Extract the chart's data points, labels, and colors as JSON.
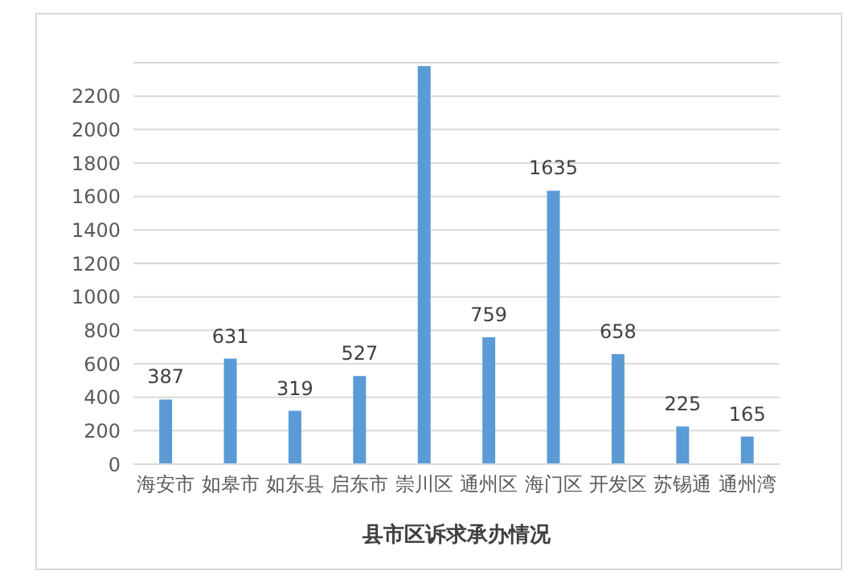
{
  "chart_data": {
    "type": "bar",
    "xlabel": "县市区诉求承办情况",
    "categories": [
      "海安市",
      "如皋市",
      "如东县",
      "启东市",
      "崇川区",
      "通州区",
      "海门区",
      "开发区",
      "苏锡通",
      "通州湾"
    ],
    "values": [
      387,
      631,
      319,
      527,
      2380,
      759,
      1635,
      658,
      225,
      165
    ],
    "value_labels": [
      "387",
      "631",
      "319",
      "527",
      null,
      "759",
      "1635",
      "658",
      "225",
      "165"
    ],
    "color": "#5b9bd5",
    "ylim": [
      0,
      2400
    ],
    "yticks": [
      0,
      200,
      400,
      600,
      800,
      1000,
      1200,
      1400,
      1600,
      1800,
      2000,
      2200
    ],
    "grid": "y",
    "legend": false
  }
}
